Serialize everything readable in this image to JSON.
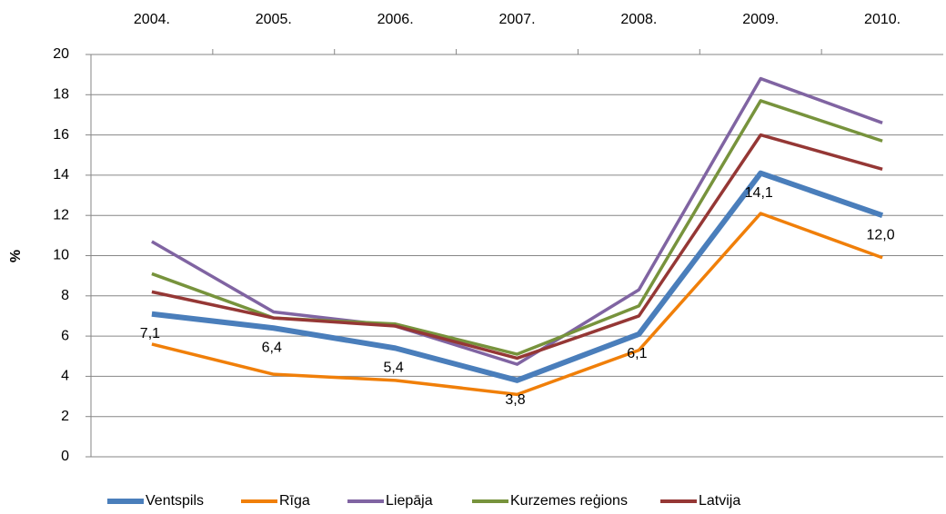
{
  "chart_data": {
    "type": "line",
    "y_label": "%",
    "categories": [
      "2004.",
      "2005.",
      "2006.",
      "2007.",
      "2008.",
      "2009.",
      "2010."
    ],
    "ylim": [
      0,
      20
    ],
    "yticks": [
      0,
      2,
      4,
      6,
      8,
      10,
      12,
      14,
      16,
      18,
      20
    ],
    "grid": true,
    "legend": "bottom",
    "series": [
      {
        "name": "Ventspils",
        "color": "#4a7ebb",
        "values": [
          7.1,
          6.4,
          5.4,
          3.8,
          6.1,
          14.1,
          12.0
        ],
        "value_labels": [
          "7,1",
          "6,4",
          "5,4",
          "3,8",
          "6,1",
          "14,1",
          "12,0"
        ]
      },
      {
        "name": "Rīga",
        "color": "#f07f09",
        "values": [
          5.6,
          4.1,
          3.8,
          3.1,
          5.3,
          12.1,
          9.9
        ]
      },
      {
        "name": "Liepāja",
        "color": "#8064a2",
        "values": [
          10.7,
          7.2,
          6.5,
          4.6,
          8.3,
          18.8,
          16.6
        ]
      },
      {
        "name": "Kurzemes reģions",
        "color": "#77933c",
        "values": [
          9.1,
          6.9,
          6.6,
          5.1,
          7.5,
          17.7,
          15.7
        ]
      },
      {
        "name": "Latvija",
        "color": "#953735",
        "values": [
          8.2,
          6.9,
          6.5,
          4.9,
          7.0,
          16.0,
          14.3
        ]
      }
    ]
  }
}
